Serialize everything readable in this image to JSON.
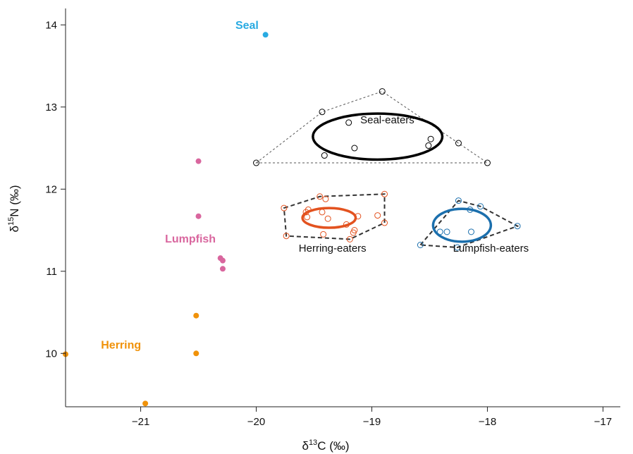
{
  "chart_data": {
    "type": "scatter",
    "xlabel": {
      "prefix": "δ",
      "sup": "13",
      "main": "C (‰)"
    },
    "ylabel": {
      "prefix": "δ",
      "sup": "15",
      "main": "N (‰)"
    },
    "xlim": [
      -21.65,
      -16.85
    ],
    "ylim": [
      9.35,
      14.2
    ],
    "xticks": [
      -21,
      -20,
      -19,
      -18,
      -17
    ],
    "xtick_labels": [
      "−21",
      "−20",
      "−19",
      "−18",
      "−17"
    ],
    "yticks": [
      10,
      11,
      12,
      13,
      14
    ],
    "ytick_labels": [
      "10",
      "11",
      "12",
      "13",
      "14"
    ],
    "grid": false,
    "prey": [
      {
        "name": "Seal",
        "color": "#29abe2",
        "label_at": [
          -20.08,
          13.95
        ],
        "points": [
          [
            -19.92,
            13.88
          ]
        ]
      },
      {
        "name": "Lumpfish",
        "color": "#d9669e",
        "label_at": [
          -20.57,
          11.35
        ],
        "points": [
          [
            -20.5,
            12.34
          ],
          [
            -20.5,
            11.67
          ],
          [
            -20.31,
            11.16
          ],
          [
            -20.29,
            11.13
          ],
          [
            -20.29,
            11.03
          ]
        ]
      },
      {
        "name": "Herring",
        "color": "#f0920a",
        "label_at": [
          -21.17,
          10.06
        ],
        "points": [
          [
            -20.52,
            10.46
          ],
          [
            -20.52,
            10.0
          ],
          [
            -21.65,
            9.99
          ],
          [
            -20.96,
            9.39
          ]
        ]
      }
    ],
    "consumers": [
      {
        "name": "Seal-eaters",
        "hull_color": "#555555",
        "ellipse_color": "#000000",
        "label_at": [
          -19.1,
          12.8
        ],
        "label_anchor": "start",
        "points": [
          [
            -20.0,
            12.32
          ],
          [
            -19.43,
            12.94
          ],
          [
            -19.2,
            12.81
          ],
          [
            -19.15,
            12.5
          ],
          [
            -19.41,
            12.41
          ],
          [
            -18.91,
            13.19
          ],
          [
            -18.51,
            12.53
          ],
          [
            -18.49,
            12.61
          ],
          [
            -18.25,
            12.56
          ],
          [
            -18.0,
            12.32
          ]
        ],
        "hull": [
          [
            -20.0,
            12.32
          ],
          [
            -19.43,
            12.94
          ],
          [
            -18.91,
            13.19
          ],
          [
            -18.0,
            12.32
          ]
        ],
        "ellipse": {
          "cx": -18.95,
          "cy": 12.64,
          "rx": 0.56,
          "ry": 0.28
        }
      },
      {
        "name": "Herring-eaters",
        "hull_color": "#333333",
        "ellipse_color": "#e3521f",
        "label_at": [
          -19.34,
          11.24
        ],
        "label_anchor": "middle",
        "points": [
          [
            -19.76,
            11.77
          ],
          [
            -19.57,
            11.72
          ],
          [
            -19.56,
            11.66
          ],
          [
            -19.55,
            11.75
          ],
          [
            -19.45,
            11.91
          ],
          [
            -19.4,
            11.88
          ],
          [
            -19.43,
            11.72
          ],
          [
            -19.38,
            11.64
          ],
          [
            -19.42,
            11.45
          ],
          [
            -19.19,
            11.39
          ],
          [
            -19.22,
            11.57
          ],
          [
            -19.16,
            11.47
          ],
          [
            -19.15,
            11.5
          ],
          [
            -19.12,
            11.67
          ],
          [
            -19.74,
            11.43
          ],
          [
            -18.95,
            11.68
          ],
          [
            -18.89,
            11.94
          ],
          [
            -18.89,
            11.59
          ]
        ],
        "hull": [
          [
            -19.76,
            11.77
          ],
          [
            -19.45,
            11.91
          ],
          [
            -18.89,
            11.94
          ],
          [
            -18.89,
            11.59
          ],
          [
            -19.19,
            11.39
          ],
          [
            -19.74,
            11.43
          ]
        ],
        "ellipse": {
          "cx": -19.37,
          "cy": 11.65,
          "rx": 0.23,
          "ry": 0.12
        }
      },
      {
        "name": "Lumpfish-eaters",
        "hull_color": "#333333",
        "ellipse_color": "#1b6fad",
        "label_at": [
          -17.97,
          11.24
        ],
        "label_anchor": "middle",
        "points": [
          [
            -18.58,
            11.32
          ],
          [
            -18.25,
            11.86
          ],
          [
            -18.06,
            11.79
          ],
          [
            -18.15,
            11.75
          ],
          [
            -18.41,
            11.48
          ],
          [
            -18.35,
            11.48
          ],
          [
            -18.14,
            11.48
          ],
          [
            -18.26,
            11.29
          ],
          [
            -17.74,
            11.55
          ]
        ],
        "hull": [
          [
            -18.58,
            11.32
          ],
          [
            -18.25,
            11.86
          ],
          [
            -18.06,
            11.79
          ],
          [
            -17.74,
            11.55
          ],
          [
            -18.26,
            11.29
          ]
        ],
        "ellipse": {
          "cx": -18.22,
          "cy": 11.56,
          "rx": 0.25,
          "ry": 0.2
        }
      }
    ]
  }
}
